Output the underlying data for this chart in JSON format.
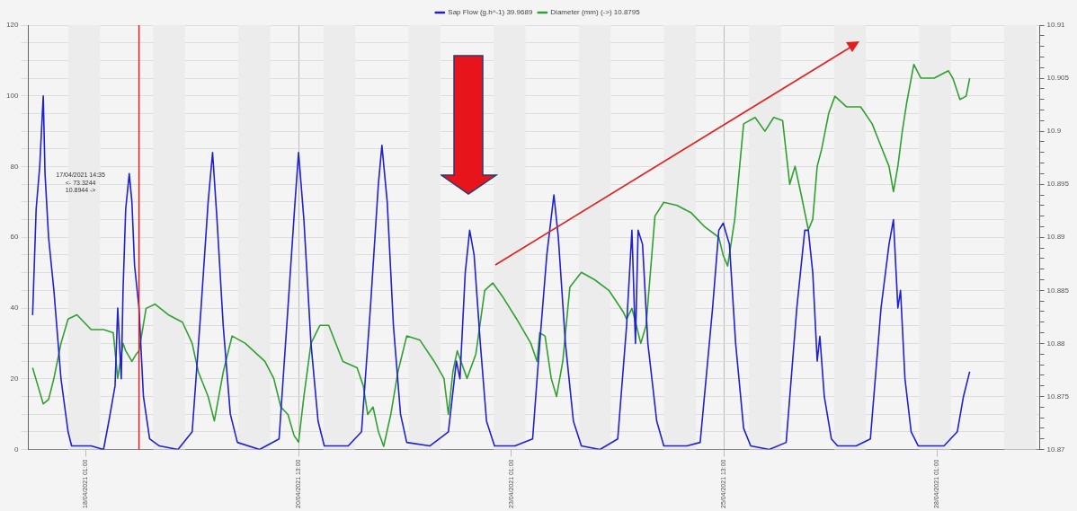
{
  "chart_data": {
    "type": "line",
    "marker": "none",
    "grid": true,
    "legend": "top",
    "xlim": [
      "2021-04-17T08:45",
      "2021-04-29T06:00"
    ],
    "xticks": [
      {
        "value": "2021-04-18T01:00",
        "label": "18/04/2021 01:00"
      },
      {
        "value": "2021-04-20T13:00",
        "label": "20/04/2021 13:00"
      },
      {
        "value": "2021-04-23T01:00",
        "label": "23/04/2021 01:00"
      },
      {
        "value": "2021-04-25T13:00",
        "label": "25/04/2021 13:00"
      },
      {
        "value": "2021-04-28T01:00",
        "label": "28/04/2021 01:00"
      }
    ],
    "ylim": [
      0,
      120
    ],
    "yticks": [
      0,
      {
        "value": 5,
        "label": null
      },
      {
        "value": 10,
        "label": null
      },
      {
        "value": 15,
        "label": null
      },
      20,
      {
        "value": 25,
        "label": null
      },
      {
        "value": 30,
        "label": null
      },
      {
        "value": 35,
        "label": null
      },
      40,
      {
        "value": 45,
        "label": null
      },
      {
        "value": 50,
        "label": null
      },
      {
        "value": 55,
        "label": null
      },
      60,
      {
        "value": 65,
        "label": null
      },
      {
        "value": 70,
        "label": null
      },
      {
        "value": 75,
        "label": null
      },
      80,
      {
        "value": 85,
        "label": null
      },
      {
        "value": 90,
        "label": null
      },
      {
        "value": 95,
        "label": null
      },
      100,
      {
        "value": 105,
        "label": null
      },
      {
        "value": 110,
        "label": null
      },
      {
        "value": 115,
        "label": null
      },
      120
    ],
    "y2lim": [
      10.87,
      10.91
    ],
    "y2ticks": [
      10.87,
      {
        "value": 10.871,
        "label": null
      },
      {
        "value": 10.872,
        "label": null
      },
      {
        "value": 10.873,
        "label": null
      },
      {
        "value": 10.874,
        "label": null
      },
      10.875,
      {
        "value": 10.876,
        "label": null
      },
      {
        "value": 10.877,
        "label": null
      },
      {
        "value": 10.878,
        "label": null
      },
      {
        "value": 10.879,
        "label": null
      },
      10.88,
      {
        "value": 10.881,
        "label": null
      },
      {
        "value": 10.882,
        "label": null
      },
      {
        "value": 10.883,
        "label": null
      },
      {
        "value": 10.884,
        "label": null
      },
      10.885,
      {
        "value": 10.886,
        "label": null
      },
      {
        "value": 10.887,
        "label": null
      },
      {
        "value": 10.888,
        "label": null
      },
      {
        "value": 10.889,
        "label": null
      },
      10.89,
      {
        "value": 10.891,
        "label": null
      },
      {
        "value": 10.892,
        "label": null
      },
      {
        "value": 10.893,
        "label": null
      },
      {
        "value": 10.894,
        "label": null
      },
      10.895,
      {
        "value": 10.896,
        "label": null
      },
      {
        "value": 10.897,
        "label": null
      },
      {
        "value": 10.898,
        "label": null
      },
      {
        "value": 10.899,
        "label": null
      },
      10.9,
      {
        "value": 10.901,
        "label": null
      },
      {
        "value": 10.902,
        "label": null
      },
      {
        "value": 10.903,
        "label": null
      },
      {
        "value": 10.904,
        "label": null
      },
      10.905,
      {
        "value": 10.906,
        "label": null
      },
      {
        "value": 10.907,
        "label": null
      },
      {
        "value": 10.908,
        "label": null
      },
      {
        "value": 10.909,
        "label": null
      },
      10.91
    ],
    "bands": [
      {
        "axis": "x",
        "from": "2021-04-17T20:00",
        "to": "2021-04-18T05:00",
        "color": "#ececec"
      },
      {
        "axis": "x",
        "from": "2021-04-18T20:00",
        "to": "2021-04-19T05:00",
        "color": "#ececec"
      },
      {
        "axis": "x",
        "from": "2021-04-19T20:00",
        "to": "2021-04-20T05:00",
        "color": "#ececec"
      },
      {
        "axis": "x",
        "from": "2021-04-20T20:00",
        "to": "2021-04-21T05:00",
        "color": "#ececec"
      },
      {
        "axis": "x",
        "from": "2021-04-21T20:00",
        "to": "2021-04-22T05:00",
        "color": "#ececec"
      },
      {
        "axis": "x",
        "from": "2021-04-22T20:00",
        "to": "2021-04-23T05:00",
        "color": "#ececec"
      },
      {
        "axis": "x",
        "from": "2021-04-23T20:00",
        "to": "2021-04-24T05:00",
        "color": "#ececec"
      },
      {
        "axis": "x",
        "from": "2021-04-24T20:00",
        "to": "2021-04-25T05:00",
        "color": "#ececec"
      },
      {
        "axis": "x",
        "from": "2021-04-25T20:00",
        "to": "2021-04-26T05:00",
        "color": "#ececec"
      },
      {
        "axis": "x",
        "from": "2021-04-26T20:00",
        "to": "2021-04-27T05:00",
        "color": "#ececec"
      },
      {
        "axis": "x",
        "from": "2021-04-27T20:00",
        "to": "2021-04-28T05:00",
        "color": "#ececec"
      },
      {
        "axis": "x",
        "from": "2021-04-28T20:00",
        "to": "2021-04-29T05:00",
        "color": "#ececec"
      }
    ],
    "ref_lines": [
      {
        "axis": "x",
        "value": "2021-04-18T16:00",
        "color": "#e02020"
      }
    ],
    "annotations": [
      "17/04/2021 14:35",
      "<- 73.3244",
      "10.8944 ->"
    ],
    "series": [
      {
        "name": "Sap Flow (g.h^-1) 39.9689",
        "color": "#2020d0",
        "x": [
          "2021-04-17T10:00",
          "2021-04-17T11:00",
          "2021-04-17T12:00",
          "2021-04-17T13:00",
          "2021-04-17T13:30",
          "2021-04-17T14:30",
          "2021-04-17T16:00",
          "2021-04-17T18:00",
          "2021-04-17T20:00",
          "2021-04-17T21:00",
          "2021-04-18T02:30",
          "2021-04-18T06:00",
          "2021-04-18T07:30",
          "2021-04-18T09:15",
          "2021-04-18T10:00",
          "2021-04-18T11:00",
          "2021-04-18T11:30",
          "2021-04-18T12:15",
          "2021-04-18T13:15",
          "2021-04-18T14:00",
          "2021-04-18T14:45",
          "2021-04-18T16:00",
          "2021-04-18T17:15",
          "2021-04-18T19:00",
          "2021-04-18T21:45",
          "2021-04-19T03:00",
          "2021-04-19T07:00",
          "2021-04-19T09:30",
          "2021-04-19T11:30",
          "2021-04-19T12:45",
          "2021-04-19T14:00",
          "2021-04-19T15:45",
          "2021-04-19T17:45",
          "2021-04-19T19:45",
          "2021-04-20T02:00",
          "2021-04-20T07:30",
          "2021-04-20T10:00",
          "2021-04-20T12:00",
          "2021-04-20T13:00",
          "2021-04-20T14:30",
          "2021-04-20T16:30",
          "2021-04-20T18:30",
          "2021-04-20T20:15",
          "2021-04-21T03:00",
          "2021-04-21T06:45",
          "2021-04-21T09:15",
          "2021-04-21T11:30",
          "2021-04-21T12:30",
          "2021-04-21T14:00",
          "2021-04-21T15:45",
          "2021-04-21T17:45",
          "2021-04-21T19:30",
          "2021-04-22T02:00",
          "2021-04-22T07:15",
          "2021-04-22T09:30",
          "2021-04-22T10:30",
          "2021-04-22T12:00",
          "2021-04-22T13:15",
          "2021-04-22T14:30",
          "2021-04-22T16:15",
          "2021-04-22T18:00",
          "2021-04-22T20:15",
          "2021-04-23T02:00",
          "2021-04-23T07:00",
          "2021-04-23T09:00",
          "2021-04-23T11:00",
          "2021-04-23T13:00",
          "2021-04-23T14:15",
          "2021-04-23T16:15",
          "2021-04-23T18:30",
          "2021-04-23T20:45",
          "2021-04-24T02:00",
          "2021-04-24T07:00",
          "2021-04-24T09:30",
          "2021-04-24T11:00",
          "2021-04-24T12:00",
          "2021-04-24T12:45",
          "2021-04-24T14:00",
          "2021-04-24T15:30",
          "2021-04-24T18:00",
          "2021-04-24T20:00",
          "2021-04-25T02:30",
          "2021-04-25T06:15",
          "2021-04-25T09:45",
          "2021-04-25T11:30",
          "2021-04-25T12:45",
          "2021-04-25T14:30",
          "2021-04-25T16:15",
          "2021-04-25T18:30",
          "2021-04-25T20:30",
          "2021-04-26T01:45",
          "2021-04-26T06:30",
          "2021-04-26T09:30",
          "2021-04-26T11:45",
          "2021-04-26T12:45",
          "2021-04-26T14:00",
          "2021-04-26T15:15",
          "2021-04-26T16:00",
          "2021-04-26T17:15",
          "2021-04-26T19:15",
          "2021-04-26T21:00",
          "2021-04-27T02:15",
          "2021-04-27T06:15",
          "2021-04-27T09:15",
          "2021-04-27T11:30",
          "2021-04-27T12:45",
          "2021-04-27T14:00",
          "2021-04-27T14:45",
          "2021-04-27T16:00",
          "2021-04-27T17:45",
          "2021-04-27T19:45",
          "2021-04-28T03:00",
          "2021-04-28T06:45",
          "2021-04-28T08:30",
          "2021-04-28T10:15"
        ],
        "values": [
          38,
          68,
          80,
          100,
          78,
          60,
          45,
          20,
          5,
          1,
          1,
          0,
          8,
          18,
          40,
          20,
          45,
          68,
          78,
          70,
          52,
          40,
          15,
          3,
          1,
          0,
          5,
          40,
          70,
          84,
          65,
          35,
          10,
          2,
          0,
          3,
          40,
          70,
          84,
          65,
          30,
          8,
          1,
          1,
          5,
          40,
          75,
          86,
          70,
          35,
          10,
          2,
          1,
          5,
          25,
          20,
          50,
          62,
          55,
          30,
          8,
          1,
          1,
          3,
          30,
          55,
          72,
          60,
          30,
          8,
          1,
          0,
          3,
          35,
          62,
          30,
          62,
          58,
          30,
          8,
          1,
          1,
          2,
          40,
          62,
          64,
          58,
          30,
          6,
          1,
          0,
          2,
          40,
          62,
          62,
          50,
          25,
          32,
          15,
          3,
          1,
          1,
          3,
          40,
          58,
          65,
          40,
          45,
          20,
          5,
          1,
          1,
          5,
          15,
          22
        ]
      },
      {
        "name": "Diameter (mm) (->) 10.8795",
        "color": "#30a030",
        "axis": "y2",
        "x": [
          "2021-04-17T10:00",
          "2021-04-17T11:30",
          "2021-04-17T13:00",
          "2021-04-17T14:30",
          "2021-04-17T16:00",
          "2021-04-17T18:00",
          "2021-04-17T20:00",
          "2021-04-17T22:30",
          "2021-04-18T02:30",
          "2021-04-18T06:00",
          "2021-04-18T08:45",
          "2021-04-18T10:00",
          "2021-04-18T11:30",
          "2021-04-18T12:15",
          "2021-04-18T14:00",
          "2021-04-18T15:15",
          "2021-04-18T16:00",
          "2021-04-18T18:00",
          "2021-04-18T20:30",
          "2021-04-19T00:15",
          "2021-04-19T04:15",
          "2021-04-19T07:00",
          "2021-04-19T08:45",
          "2021-04-19T11:30",
          "2021-04-19T13:15",
          "2021-04-19T15:45",
          "2021-04-19T18:15",
          "2021-04-19T22:00",
          "2021-04-20T03:30",
          "2021-04-20T06:00",
          "2021-04-20T08:00",
          "2021-04-20T10:00",
          "2021-04-20T11:45",
          "2021-04-20T13:00",
          "2021-04-20T14:30",
          "2021-04-20T16:30",
          "2021-04-20T19:00",
          "2021-04-20T21:30",
          "2021-04-21T01:30",
          "2021-04-21T05:30",
          "2021-04-21T07:15",
          "2021-04-21T08:30",
          "2021-04-21T10:00",
          "2021-04-21T11:30",
          "2021-04-21T13:00",
          "2021-04-21T15:00",
          "2021-04-21T17:00",
          "2021-04-21T19:30",
          "2021-04-21T23:15",
          "2021-04-22T03:15",
          "2021-04-22T06:00",
          "2021-04-22T07:15",
          "2021-04-22T08:30",
          "2021-04-22T09:45",
          "2021-04-22T12:30",
          "2021-04-22T15:00",
          "2021-04-22T17:30",
          "2021-04-22T19:45",
          "2021-04-22T22:45",
          "2021-04-23T02:30",
          "2021-04-23T06:30",
          "2021-04-23T08:15",
          "2021-04-23T09:00",
          "2021-04-23T10:30",
          "2021-04-23T12:15",
          "2021-04-23T13:45",
          "2021-04-23T15:30",
          "2021-04-23T17:30",
          "2021-04-23T20:45",
          "2021-04-24T00:30",
          "2021-04-24T04:30",
          "2021-04-24T08:30",
          "2021-04-24T09:30",
          "2021-04-24T11:00",
          "2021-04-24T12:15",
          "2021-04-24T13:30",
          "2021-04-24T15:00",
          "2021-04-24T17:30",
          "2021-04-24T20:00",
          "2021-04-24T23:45",
          "2021-04-25T03:45",
          "2021-04-25T07:30",
          "2021-04-25T11:30",
          "2021-04-25T12:45",
          "2021-04-25T14:00",
          "2021-04-25T16:00",
          "2021-04-25T18:30",
          "2021-04-25T21:45",
          "2021-04-26T00:30",
          "2021-04-26T03:00",
          "2021-04-26T05:30",
          "2021-04-26T07:30",
          "2021-04-26T09:00",
          "2021-04-26T10:45",
          "2021-04-26T12:45",
          "2021-04-26T14:00",
          "2021-04-26T15:15",
          "2021-04-26T16:30",
          "2021-04-26T18:30",
          "2021-04-26T20:15",
          "2021-04-26T23:30",
          "2021-04-27T03:30",
          "2021-04-27T06:45",
          "2021-04-27T08:45",
          "2021-04-27T11:30",
          "2021-04-27T12:45",
          "2021-04-27T14:00",
          "2021-04-27T15:15",
          "2021-04-27T16:30",
          "2021-04-27T18:30",
          "2021-04-27T20:30",
          "2021-04-28T00:15",
          "2021-04-28T04:15",
          "2021-04-28T05:30",
          "2021-04-28T07:30",
          "2021-04-28T09:15",
          "2021-04-28T10:15"
        ],
        "values": [
          10.8777,
          10.876,
          10.8743,
          10.8747,
          10.8767,
          10.88,
          10.8823,
          10.8827,
          10.8813,
          10.8813,
          10.881,
          10.8767,
          10.88,
          10.8793,
          10.8783,
          10.879,
          10.8793,
          10.8833,
          10.8837,
          10.8827,
          10.882,
          10.88,
          10.8773,
          10.875,
          10.8727,
          10.8773,
          10.8807,
          10.88,
          10.8783,
          10.8767,
          10.874,
          10.8733,
          10.8713,
          10.8707,
          10.875,
          10.88,
          10.8817,
          10.8817,
          10.8783,
          10.8777,
          10.876,
          10.8733,
          10.874,
          10.8717,
          10.8703,
          10.8733,
          10.8773,
          10.8807,
          10.8803,
          10.8783,
          10.8767,
          10.8733,
          10.8773,
          10.8793,
          10.8767,
          10.879,
          10.885,
          10.8857,
          10.8843,
          10.8823,
          10.88,
          10.8783,
          10.881,
          10.8807,
          10.8767,
          10.875,
          10.8783,
          10.8853,
          10.8867,
          10.886,
          10.885,
          10.883,
          10.8823,
          10.8833,
          10.8817,
          10.88,
          10.8817,
          10.892,
          10.8933,
          10.893,
          10.8923,
          10.891,
          10.89,
          10.8883,
          10.8873,
          10.8917,
          10.9007,
          10.9013,
          10.9,
          10.9013,
          10.901,
          10.895,
          10.8967,
          10.894,
          10.8907,
          10.8917,
          10.8967,
          10.8983,
          10.9017,
          10.9033,
          10.9023,
          10.9023,
          10.9007,
          10.899,
          10.8967,
          10.8943,
          10.8967,
          10.9,
          10.9027,
          10.9063,
          10.905,
          10.905,
          10.9057,
          10.905,
          10.903,
          10.9033,
          10.905
        ]
      }
    ]
  }
}
